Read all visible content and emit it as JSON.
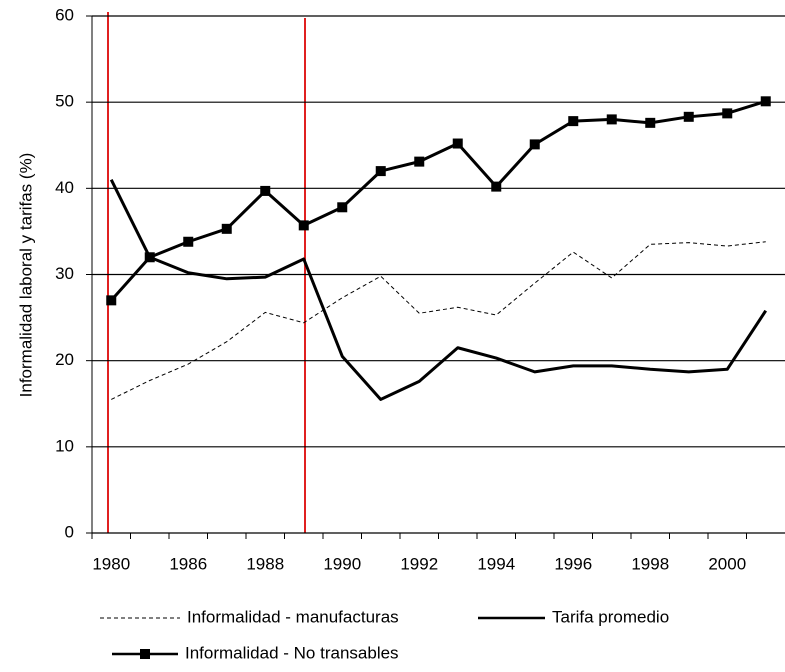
{
  "chart_data": {
    "type": "line",
    "y_label": "Informalidad laboral y tarifas (%)",
    "categories": [
      "1980",
      null,
      "1986",
      null,
      "1988",
      null,
      "1990",
      null,
      "1992",
      null,
      "1994",
      null,
      "1996",
      null,
      "1998",
      null,
      "2000",
      null
    ],
    "series": [
      {
        "name": "Informalidad - manufacturas",
        "color": "#000000",
        "dash": true,
        "marker": null,
        "values": [
          15.5,
          17.7,
          19.6,
          22.2,
          25.6,
          24.4,
          27.3,
          29.8,
          25.5,
          26.2,
          25.3,
          29,
          32.6,
          29.6,
          33.5,
          33.7,
          33.3,
          33.8
        ]
      },
      {
        "name": "Tarifa promedio",
        "color": "#000000",
        "dash": false,
        "marker": null,
        "values": [
          41,
          32,
          30.2,
          29.5,
          29.7,
          31.8,
          20.5,
          15.5,
          17.6,
          21.5,
          20.3,
          18.7,
          19.4,
          19.4,
          19,
          18.7,
          19,
          25.8
        ]
      },
      {
        "name": "Informalidad - No transables",
        "color": "#000000",
        "dash": false,
        "marker": "square",
        "values": [
          27,
          32,
          33.8,
          35.3,
          39.7,
          35.7,
          37.8,
          42,
          43.1,
          45.2,
          40.2,
          45.1,
          47.8,
          48,
          47.6,
          48.3,
          48.7,
          50.1
        ]
      }
    ],
    "ylim": [
      0,
      60
    ],
    "yticks": [
      0,
      10,
      20,
      30,
      40,
      50,
      60
    ],
    "grid": true,
    "legend": "bottom"
  }
}
